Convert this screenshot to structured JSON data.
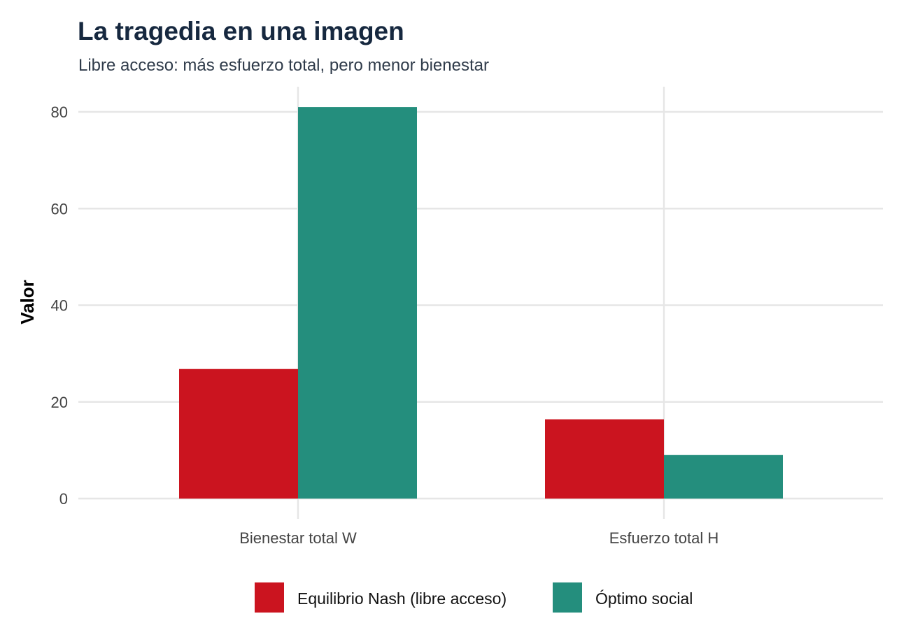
{
  "chart_data": {
    "type": "bar",
    "title": "La tragedia en una imagen",
    "subtitle": "Libre acceso: más esfuerzo total, pero menor bienestar",
    "xlabel": "",
    "ylabel": "Valor",
    "categories": [
      "Bienestar total W",
      "Esfuerzo total H"
    ],
    "series": [
      {
        "name": "Equilibrio Nash (libre acceso)",
        "color": "#cb141f",
        "values": [
          26.8,
          16.4
        ]
      },
      {
        "name": "Óptimo social",
        "color": "#248e7d",
        "values": [
          81,
          9
        ]
      }
    ],
    "ylim": [
      0,
      85
    ],
    "yticks": [
      "0",
      "20",
      "40",
      "60",
      "80"
    ],
    "grid": true,
    "legend_position": "bottom"
  }
}
